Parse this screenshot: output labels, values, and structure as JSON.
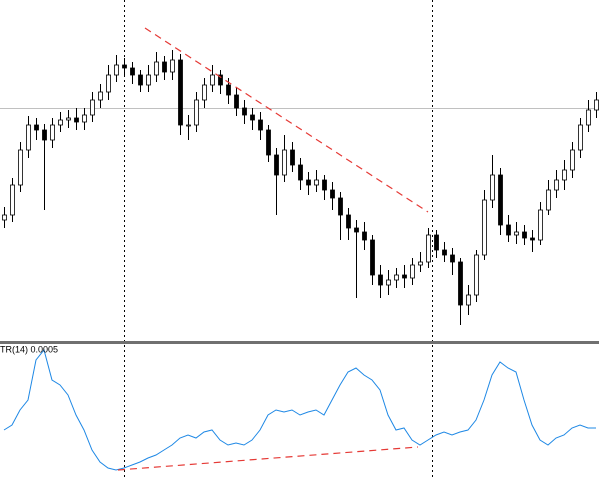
{
  "chart_data": [
    {
      "type": "candlestick",
      "color": "#000000",
      "ylim": [
        0,
        340
      ],
      "open": [
        120,
        125,
        155,
        190,
        215,
        210,
        200,
        215,
        220,
        222,
        218,
        225,
        240,
        248,
        265,
        275,
        272,
        265,
        255,
        265,
        278,
        268,
        280,
        215,
        215,
        240,
        255,
        265,
        255,
        245,
        232,
        225,
        220,
        210,
        185,
        165,
        190,
        175,
        160,
        155,
        160,
        150,
        142,
        125,
        112,
        108,
        100,
        65,
        55,
        60,
        65,
        62,
        75,
        78,
        105,
        90,
        85,
        78,
        35,
        45,
        85,
        140,
        165,
        115,
        105,
        108,
        102,
        100,
        130,
        150,
        160,
        170,
        190,
        215,
        230
      ],
      "high": [
        133,
        162,
        198,
        224,
        222,
        216,
        222,
        228,
        230,
        232,
        232,
        248,
        256,
        275,
        285,
        282,
        278,
        270,
        275,
        288,
        284,
        290,
        286,
        225,
        248,
        262,
        275,
        270,
        262,
        252,
        240,
        232,
        228,
        215,
        192,
        205,
        198,
        182,
        168,
        170,
        165,
        158,
        148,
        132,
        120,
        118,
        105,
        75,
        70,
        72,
        75,
        82,
        88,
        112,
        110,
        98,
        92,
        82,
        55,
        90,
        150,
        185,
        172,
        125,
        118,
        115,
        110,
        138,
        160,
        170,
        180,
        198,
        222,
        240,
        248
      ],
      "low": [
        112,
        118,
        148,
        182,
        200,
        130,
        192,
        208,
        212,
        210,
        210,
        218,
        232,
        240,
        258,
        264,
        256,
        248,
        248,
        258,
        260,
        260,
        205,
        200,
        208,
        232,
        248,
        246,
        236,
        224,
        216,
        210,
        200,
        178,
        125,
        158,
        168,
        150,
        145,
        148,
        140,
        130,
        100,
        100,
        42,
        90,
        55,
        42,
        45,
        52,
        52,
        55,
        68,
        72,
        82,
        78,
        65,
        15,
        25,
        38,
        80,
        132,
        105,
        98,
        96,
        95,
        88,
        95,
        125,
        142,
        150,
        162,
        182,
        208,
        222
      ],
      "close": [
        125,
        155,
        190,
        215,
        210,
        200,
        215,
        220,
        222,
        218,
        225,
        240,
        248,
        265,
        275,
        272,
        265,
        255,
        265,
        278,
        268,
        280,
        215,
        215,
        240,
        255,
        265,
        255,
        245,
        232,
        225,
        220,
        210,
        185,
        165,
        190,
        175,
        160,
        155,
        160,
        150,
        142,
        125,
        112,
        108,
        100,
        65,
        55,
        60,
        65,
        62,
        75,
        78,
        105,
        90,
        85,
        78,
        35,
        45,
        85,
        140,
        165,
        115,
        105,
        108,
        102,
        100,
        130,
        150,
        160,
        170,
        190,
        215,
        230,
        240
      ]
    },
    {
      "type": "line",
      "title": "TR(14) 0.0005",
      "color": "#1e88e5",
      "ylim": [
        0,
        134
      ],
      "values": [
        48,
        53,
        68,
        78,
        118,
        128,
        98,
        93,
        83,
        63,
        48,
        28,
        16,
        10,
        8,
        10,
        13,
        16,
        20,
        23,
        28,
        33,
        40,
        43,
        40,
        46,
        48,
        38,
        33,
        35,
        33,
        38,
        48,
        63,
        68,
        66,
        68,
        63,
        66,
        68,
        63,
        78,
        93,
        106,
        110,
        103,
        98,
        88,
        63,
        48,
        50,
        38,
        33,
        38,
        43,
        46,
        43,
        46,
        48,
        58,
        78,
        103,
        116,
        110,
        106,
        78,
        53,
        38,
        33,
        40,
        43,
        50,
        53,
        50,
        50
      ]
    }
  ]
}
